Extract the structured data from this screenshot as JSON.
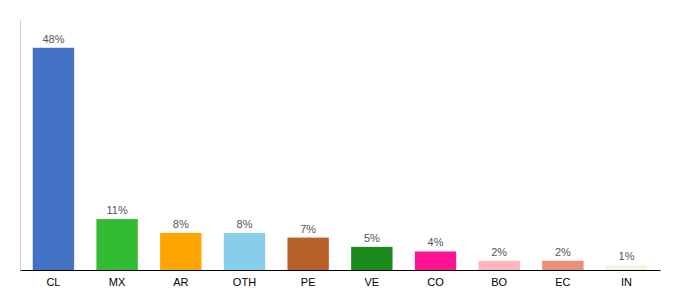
{
  "chart_data": {
    "type": "bar",
    "categories": [
      "CL",
      "MX",
      "AR",
      "OTH",
      "PE",
      "VE",
      "CO",
      "BO",
      "EC",
      "IN"
    ],
    "values": [
      48,
      11,
      8,
      8,
      7,
      5,
      4,
      2,
      2,
      1
    ],
    "value_labels": [
      "48%",
      "11%",
      "8%",
      "8%",
      "7%",
      "5%",
      "4%",
      "2%",
      "2%",
      "1%"
    ],
    "colors": [
      "#4472C4",
      "#33BB33",
      "#FFA500",
      "#87CEEB",
      "#B8622A",
      "#1A8A1A",
      "#FF1493",
      "#FFB6C1",
      "#E8907A",
      "#F5F5DC"
    ],
    "ylim": [
      0,
      54
    ],
    "data_labels": true,
    "tick_labels": "x"
  }
}
